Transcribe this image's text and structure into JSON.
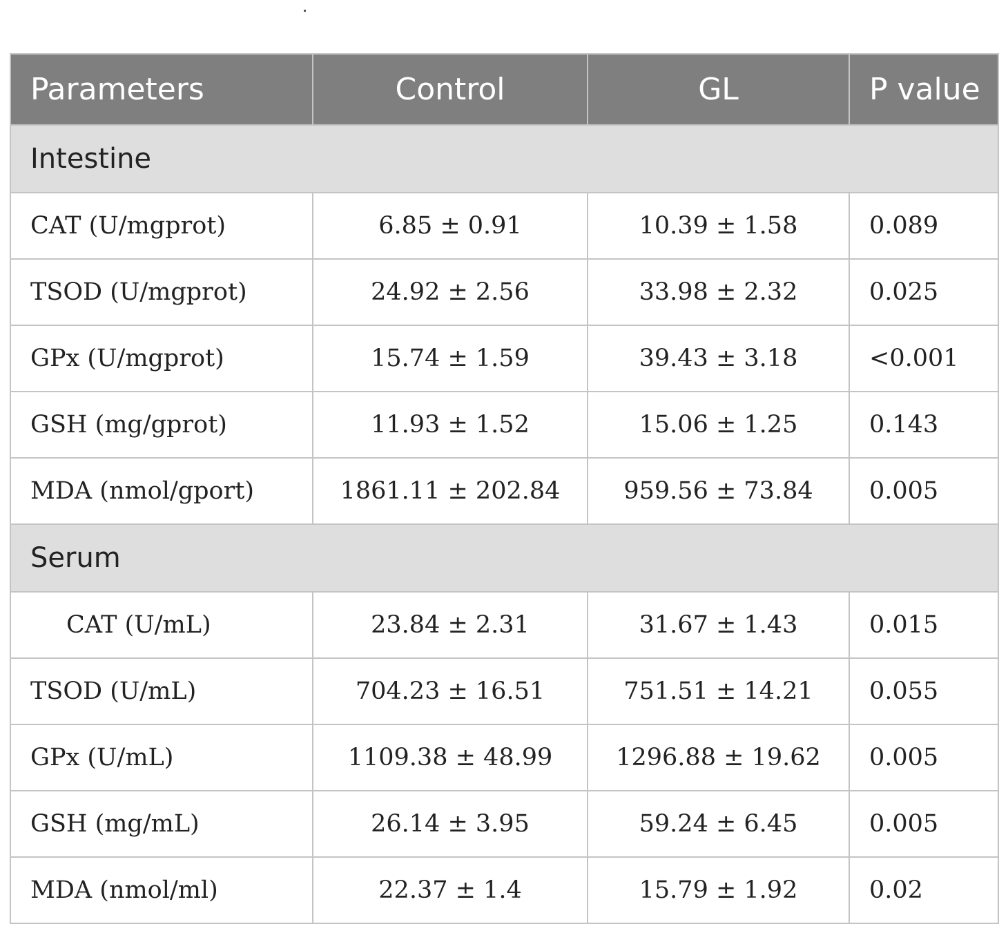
{
  "headers": {
    "parameters": "Parameters",
    "control": "Control",
    "gl": "GL",
    "p_value": "P value"
  },
  "sections": [
    {
      "title": "Intestine",
      "rows": [
        {
          "parameter": "CAT (U/mgprot)",
          "control": "6.85 ± 0.91",
          "gl": "10.39 ± 1.58",
          "p": "0.089"
        },
        {
          "parameter": "TSOD (U/mgprot)",
          "control": "24.92 ± 2.56",
          "gl": "33.98 ± 2.32",
          "p": "0.025"
        },
        {
          "parameter": "GPx (U/mgprot)",
          "control": "15.74 ± 1.59",
          "gl": "39.43 ± 3.18",
          "p": "<0.001"
        },
        {
          "parameter": "GSH (mg/gprot)",
          "control": "11.93 ± 1.52",
          "gl": "15.06 ± 1.25",
          "p": "0.143"
        },
        {
          "parameter": "MDA (nmol/gport)",
          "control": "1861.11 ± 202.84",
          "gl": "959.56 ± 73.84",
          "p": "0.005"
        }
      ]
    },
    {
      "title": "Serum",
      "rows": [
        {
          "parameter": "CAT (U/mL)",
          "control": "23.84 ± 2.31",
          "gl": "31.67 ± 1.43",
          "p": "0.015"
        },
        {
          "parameter": "TSOD (U/mL)",
          "control": "704.23 ± 16.51",
          "gl": "751.51 ± 14.21",
          "p": "0.055"
        },
        {
          "parameter": "GPx (U/mL)",
          "control": "1109.38 ± 48.99",
          "gl": "1296.88 ± 19.62",
          "p": "0.005"
        },
        {
          "parameter": "GSH (mg/mL)",
          "control": "26.14 ± 3.95",
          "gl": "59.24 ± 6.45",
          "p": "0.005"
        },
        {
          "parameter": "MDA (nmol/ml)",
          "control": "22.37 ± 1.4",
          "gl": "15.79 ± 1.92",
          "p": "0.02"
        }
      ]
    }
  ]
}
